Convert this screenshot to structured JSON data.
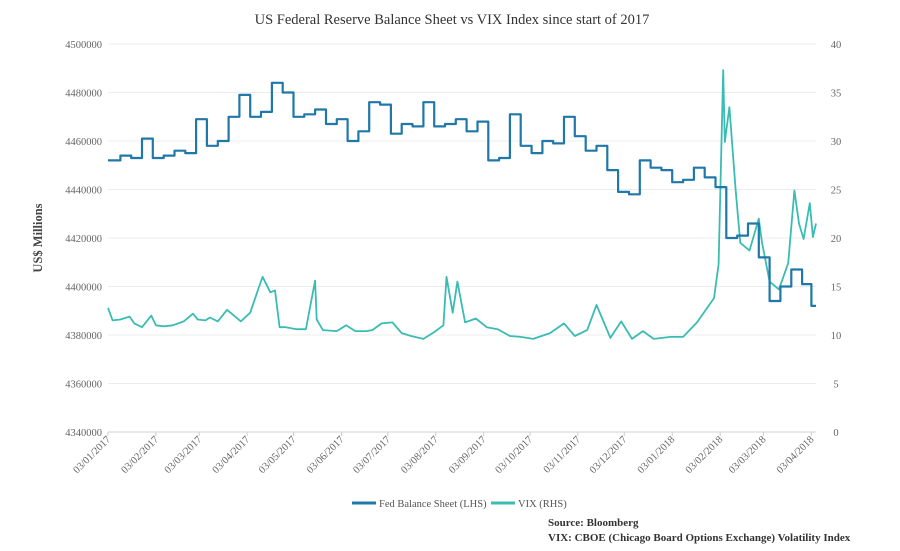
{
  "chart_data": {
    "type": "line",
    "title": "US Federal Reserve Balance Sheet vs VIX Index since start of 2017",
    "ylabel_left": "US$ Millions",
    "ylim_left": [
      4340000,
      4500000
    ],
    "ylim_right": [
      0,
      40
    ],
    "yticks_left": [
      "4500000",
      "4480000",
      "4460000",
      "4440000",
      "4420000",
      "4400000",
      "4380000",
      "4360000",
      "4340000"
    ],
    "yticks_right": [
      "40",
      "35",
      "30",
      "25",
      "20",
      "15",
      "10",
      "5",
      "0"
    ],
    "x_ticks": [
      "03/01/2017",
      "03/02/2017",
      "03/03/2017",
      "03/04/2017",
      "03/05/2017",
      "03/06/2017",
      "03/07/2017",
      "03/08/2017",
      "03/09/2017",
      "03/10/2017",
      "03/11/2017",
      "03/12/2017",
      "03/01/2018",
      "03/02/2018",
      "03/03/2018",
      "03/04/2018"
    ],
    "legend_position": "bottom",
    "colors": {
      "fed": "#1f78a8",
      "vix": "#3bbcb3"
    },
    "series": [
      {
        "name": "Fed Balance Sheet (LHS)",
        "axis": "left",
        "step": true,
        "x": [
          "2017-01-03",
          "2017-01-11",
          "2017-01-18",
          "2017-01-25",
          "2017-02-01",
          "2017-02-08",
          "2017-02-15",
          "2017-02-22",
          "2017-03-01",
          "2017-03-08",
          "2017-03-15",
          "2017-03-22",
          "2017-03-29",
          "2017-04-05",
          "2017-04-12",
          "2017-04-19",
          "2017-04-26",
          "2017-05-03",
          "2017-05-10",
          "2017-05-17",
          "2017-05-24",
          "2017-05-31",
          "2017-06-07",
          "2017-06-14",
          "2017-06-21",
          "2017-06-28",
          "2017-07-05",
          "2017-07-12",
          "2017-07-19",
          "2017-07-26",
          "2017-08-02",
          "2017-08-09",
          "2017-08-16",
          "2017-08-23",
          "2017-08-30",
          "2017-09-06",
          "2017-09-13",
          "2017-09-20",
          "2017-09-27",
          "2017-10-04",
          "2017-10-11",
          "2017-10-18",
          "2017-10-25",
          "2017-11-01",
          "2017-11-08",
          "2017-11-15",
          "2017-11-22",
          "2017-11-29",
          "2017-12-06",
          "2017-12-13",
          "2017-12-20",
          "2017-12-27",
          "2018-01-03",
          "2018-01-10",
          "2018-01-17",
          "2018-01-24",
          "2018-01-31",
          "2018-02-07",
          "2018-02-14",
          "2018-02-21",
          "2018-02-28",
          "2018-03-07",
          "2018-03-14",
          "2018-03-21",
          "2018-03-28",
          "2018-04-03"
        ],
        "values": [
          4452000,
          4454000,
          4453000,
          4461000,
          4453000,
          4454000,
          4456000,
          4455000,
          4469000,
          4458000,
          4460000,
          4470000,
          4479000,
          4470000,
          4472000,
          4484000,
          4480000,
          4470000,
          4471000,
          4473000,
          4467000,
          4469000,
          4460000,
          4464000,
          4476000,
          4475000,
          4463000,
          4467000,
          4466000,
          4476000,
          4466000,
          4467000,
          4469000,
          4464000,
          4468000,
          4452000,
          4453000,
          4471000,
          4458000,
          4455000,
          4460000,
          4459000,
          4470000,
          4462000,
          4456000,
          4458000,
          4448000,
          4439000,
          4438000,
          4452000,
          4449000,
          4448000,
          4443000,
          4444000,
          4449000,
          4445000,
          4441000,
          4420000,
          4421000,
          4426000,
          4412000,
          4394000,
          4400000,
          4407000,
          4401000,
          4392000
        ]
      },
      {
        "name": "VIX (RHS)",
        "axis": "right",
        "step": false,
        "x": [
          "2017-01-03",
          "2017-01-06",
          "2017-01-11",
          "2017-01-17",
          "2017-01-20",
          "2017-01-25",
          "2017-01-31",
          "2017-02-03",
          "2017-02-08",
          "2017-02-14",
          "2017-02-21",
          "2017-02-27",
          "2017-03-02",
          "2017-03-07",
          "2017-03-10",
          "2017-03-15",
          "2017-03-21",
          "2017-03-24",
          "2017-03-30",
          "2017-04-05",
          "2017-04-11",
          "2017-04-13",
          "2017-04-18",
          "2017-04-21",
          "2017-04-24",
          "2017-04-28",
          "2017-05-05",
          "2017-05-11",
          "2017-05-17",
          "2017-05-18",
          "2017-05-22",
          "2017-05-31",
          "2017-06-06",
          "2017-06-12",
          "2017-06-19",
          "2017-06-23",
          "2017-06-29",
          "2017-07-06",
          "2017-07-12",
          "2017-07-18",
          "2017-07-26",
          "2017-08-02",
          "2017-08-08",
          "2017-08-10",
          "2017-08-14",
          "2017-08-17",
          "2017-08-22",
          "2017-08-29",
          "2017-09-05",
          "2017-09-12",
          "2017-09-20",
          "2017-09-27",
          "2017-10-05",
          "2017-10-16",
          "2017-10-25",
          "2017-11-01",
          "2017-11-09",
          "2017-11-15",
          "2017-11-24",
          "2017-12-01",
          "2017-12-08",
          "2017-12-15",
          "2017-12-22",
          "2018-01-02",
          "2018-01-10",
          "2018-01-19",
          "2018-01-30",
          "2018-02-02",
          "2018-02-05",
          "2018-02-06",
          "2018-02-09",
          "2018-02-13",
          "2018-02-16",
          "2018-02-22",
          "2018-02-28",
          "2018-03-02",
          "2018-03-07",
          "2018-03-13",
          "2018-03-19",
          "2018-03-23",
          "2018-03-26",
          "2018-03-29",
          "2018-04-02",
          "2018-04-04",
          "2018-04-06"
        ],
        "values": [
          12.8,
          11.5,
          11.6,
          11.9,
          11.2,
          10.8,
          12.0,
          11.0,
          10.9,
          11.0,
          11.4,
          12.2,
          11.6,
          11.5,
          11.8,
          11.4,
          12.6,
          12.2,
          11.4,
          12.3,
          15.1,
          16.0,
          14.4,
          14.6,
          10.8,
          10.8,
          10.6,
          10.6,
          15.6,
          11.6,
          10.5,
          10.4,
          11.0,
          10.4,
          10.4,
          10.5,
          11.2,
          11.3,
          10.2,
          9.9,
          9.6,
          10.3,
          11.0,
          16.0,
          12.3,
          15.5,
          11.3,
          11.7,
          10.8,
          10.6,
          9.9,
          9.8,
          9.6,
          10.2,
          11.2,
          9.9,
          10.5,
          13.1,
          9.7,
          11.4,
          9.6,
          10.4,
          9.6,
          9.8,
          9.8,
          11.3,
          13.8,
          17.3,
          37.3,
          29.9,
          33.5,
          25.0,
          19.5,
          18.7,
          22.0,
          19.6,
          15.5,
          14.7,
          17.4,
          24.9,
          21.5,
          19.9,
          23.6,
          20.1,
          21.5
        ]
      }
    ]
  },
  "source": {
    "line1": "Source: Bloomberg",
    "line2": "VIX: CBOE (Chicago Board Options Exchange) Volatility Index"
  }
}
